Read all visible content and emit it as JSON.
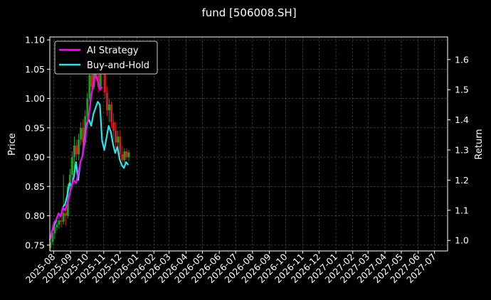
{
  "chart_data": {
    "type": "line",
    "title": "fund [506008.SH]",
    "ylabel_left": "Price",
    "ylabel_right": "Return",
    "x_ticks": [
      "2025-08",
      "2025-09",
      "2025-10",
      "2025-11",
      "2025-12",
      "2026-01",
      "2026-02",
      "2026-03",
      "2026-04",
      "2026-05",
      "2026-06",
      "2026-07",
      "2026-08",
      "2026-09",
      "2026-10",
      "2026-11",
      "2026-12",
      "2027-01",
      "2027-02",
      "2027-03",
      "2027-04",
      "2027-05",
      "2027-06",
      "2027-07"
    ],
    "xlim": [
      "2025-07-25",
      "2027-07-25"
    ],
    "left_ylim": [
      0.74,
      1.105
    ],
    "left_ticks": [
      0.75,
      0.8,
      0.85,
      0.9,
      0.95,
      1.0,
      1.05,
      1.1
    ],
    "right_ylim": [
      0.965,
      1.675
    ],
    "right_ticks": [
      1.0,
      1.1,
      1.2,
      1.3,
      1.4,
      1.5,
      1.6
    ],
    "grid": true,
    "legend_position": "top-left",
    "legend": [
      "AI Strategy",
      "Buy-and-Hold"
    ],
    "colors": {
      "ai_strategy": "#ff00ff",
      "buy_and_hold": "#22e6f2",
      "candle_up": "#1e9e1e",
      "candle_down": "#e01515",
      "background": "#000000",
      "grid": "#555555",
      "text": "#ffffff"
    },
    "candles": [
      {
        "d": "2025-07-26",
        "o": 0.745,
        "h": 0.76,
        "l": 0.74,
        "c": 0.755
      },
      {
        "d": "2025-07-30",
        "o": 0.755,
        "h": 0.775,
        "l": 0.75,
        "c": 0.77
      },
      {
        "d": "2025-08-03",
        "o": 0.77,
        "h": 0.79,
        "l": 0.76,
        "c": 0.78
      },
      {
        "d": "2025-08-07",
        "o": 0.78,
        "h": 0.795,
        "l": 0.775,
        "c": 0.785
      },
      {
        "d": "2025-08-11",
        "o": 0.785,
        "h": 0.8,
        "l": 0.778,
        "c": 0.792
      },
      {
        "d": "2025-08-15",
        "o": 0.792,
        "h": 0.805,
        "l": 0.78,
        "c": 0.79
      },
      {
        "d": "2025-08-19",
        "o": 0.79,
        "h": 0.87,
        "l": 0.785,
        "c": 0.805
      },
      {
        "d": "2025-08-23",
        "o": 0.805,
        "h": 0.82,
        "l": 0.783,
        "c": 0.8
      },
      {
        "d": "2025-08-27",
        "o": 0.8,
        "h": 0.855,
        "l": 0.795,
        "c": 0.85
      },
      {
        "d": "2025-08-31",
        "o": 0.85,
        "h": 0.88,
        "l": 0.84,
        "c": 0.87
      },
      {
        "d": "2025-09-04",
        "o": 0.87,
        "h": 0.91,
        "l": 0.86,
        "c": 0.9
      },
      {
        "d": "2025-09-08",
        "o": 0.9,
        "h": 0.935,
        "l": 0.88,
        "c": 0.92
      },
      {
        "d": "2025-09-12",
        "o": 0.92,
        "h": 0.93,
        "l": 0.895,
        "c": 0.905
      },
      {
        "d": "2025-09-16",
        "o": 0.905,
        "h": 0.94,
        "l": 0.895,
        "c": 0.93
      },
      {
        "d": "2025-09-20",
        "o": 0.93,
        "h": 0.96,
        "l": 0.92,
        "c": 0.95
      },
      {
        "d": "2025-09-24",
        "o": 0.95,
        "h": 0.965,
        "l": 0.915,
        "c": 0.925
      },
      {
        "d": "2025-09-28",
        "o": 0.925,
        "h": 0.98,
        "l": 0.92,
        "c": 0.97
      },
      {
        "d": "2025-10-02",
        "o": 0.97,
        "h": 1.01,
        "l": 0.965,
        "c": 1.0
      },
      {
        "d": "2025-10-06",
        "o": 1.0,
        "h": 1.05,
        "l": 0.995,
        "c": 1.04
      },
      {
        "d": "2025-10-10",
        "o": 1.04,
        "h": 1.06,
        "l": 1.01,
        "c": 1.02
      },
      {
        "d": "2025-10-14",
        "o": 1.02,
        "h": 1.075,
        "l": 1.015,
        "c": 1.06
      },
      {
        "d": "2025-10-18",
        "o": 1.06,
        "h": 1.07,
        "l": 1.03,
        "c": 1.04
      },
      {
        "d": "2025-10-22",
        "o": 1.04,
        "h": 1.055,
        "l": 1.01,
        "c": 1.02
      },
      {
        "d": "2025-10-26",
        "o": 1.02,
        "h": 1.08,
        "l": 1.015,
        "c": 1.07
      },
      {
        "d": "2025-10-30",
        "o": 1.07,
        "h": 1.09,
        "l": 1.04,
        "c": 1.05
      },
      {
        "d": "2025-11-03",
        "o": 1.05,
        "h": 1.06,
        "l": 1.0,
        "c": 1.01
      },
      {
        "d": "2025-11-07",
        "o": 1.01,
        "h": 1.02,
        "l": 0.97,
        "c": 0.98
      },
      {
        "d": "2025-11-11",
        "o": 0.98,
        "h": 1.0,
        "l": 0.96,
        "c": 0.99
      },
      {
        "d": "2025-11-15",
        "o": 0.99,
        "h": 0.995,
        "l": 0.95,
        "c": 0.96
      },
      {
        "d": "2025-11-19",
        "o": 0.96,
        "h": 0.975,
        "l": 0.93,
        "c": 0.945
      },
      {
        "d": "2025-11-23",
        "o": 0.945,
        "h": 0.96,
        "l": 0.915,
        "c": 0.925
      },
      {
        "d": "2025-11-27",
        "o": 0.925,
        "h": 0.945,
        "l": 0.905,
        "c": 0.935
      },
      {
        "d": "2025-12-01",
        "o": 0.935,
        "h": 0.945,
        "l": 0.895,
        "c": 0.905
      },
      {
        "d": "2025-12-05",
        "o": 0.905,
        "h": 0.92,
        "l": 0.885,
        "c": 0.895
      },
      {
        "d": "2025-12-09",
        "o": 0.895,
        "h": 0.915,
        "l": 0.89,
        "c": 0.91
      },
      {
        "d": "2025-12-13",
        "o": 0.91,
        "h": 0.915,
        "l": 0.895,
        "c": 0.9
      },
      {
        "d": "2025-12-17",
        "o": 0.9,
        "h": 0.912,
        "l": 0.893,
        "c": 0.908
      }
    ],
    "series": [
      {
        "name": "AI Strategy",
        "axis": "right",
        "x": [
          "2025-07-25",
          "2025-07-29",
          "2025-08-02",
          "2025-08-06",
          "2025-08-10",
          "2025-08-14",
          "2025-08-18",
          "2025-08-22",
          "2025-08-26",
          "2025-08-30",
          "2025-09-03",
          "2025-09-07",
          "2025-09-11",
          "2025-09-15",
          "2025-09-19",
          "2025-09-23",
          "2025-09-27",
          "2025-10-01",
          "2025-10-05",
          "2025-10-09",
          "2025-10-13",
          "2025-10-17",
          "2025-10-21",
          "2025-10-25",
          "2025-10-29"
        ],
        "values": [
          1.0,
          1.03,
          1.06,
          1.07,
          1.09,
          1.08,
          1.11,
          1.1,
          1.12,
          1.15,
          1.18,
          1.2,
          1.19,
          1.22,
          1.26,
          1.28,
          1.33,
          1.38,
          1.42,
          1.48,
          1.52,
          1.55,
          1.53,
          1.5,
          1.51
        ]
      },
      {
        "name": "Buy-and-Hold",
        "axis": "right",
        "x": [
          "2025-07-25",
          "2025-07-29",
          "2025-08-02",
          "2025-08-06",
          "2025-08-10",
          "2025-08-14",
          "2025-08-18",
          "2025-08-22",
          "2025-08-26",
          "2025-08-30",
          "2025-09-03",
          "2025-09-07",
          "2025-09-11",
          "2025-09-15",
          "2025-09-19",
          "2025-09-23",
          "2025-09-27",
          "2025-10-01",
          "2025-10-05",
          "2025-10-09",
          "2025-10-13",
          "2025-10-17",
          "2025-10-21",
          "2025-10-25",
          "2025-10-29",
          "2025-11-02",
          "2025-11-06",
          "2025-11-10",
          "2025-11-14",
          "2025-11-18",
          "2025-11-22",
          "2025-11-26",
          "2025-11-30",
          "2025-12-04",
          "2025-12-08",
          "2025-12-12",
          "2025-12-16"
        ],
        "values": [
          1.0,
          1.03,
          1.05,
          1.07,
          1.09,
          1.08,
          1.11,
          1.12,
          1.15,
          1.19,
          1.18,
          1.21,
          1.26,
          1.2,
          1.26,
          1.28,
          1.34,
          1.39,
          1.4,
          1.38,
          1.42,
          1.44,
          1.46,
          1.45,
          1.33,
          1.3,
          1.34,
          1.38,
          1.36,
          1.32,
          1.29,
          1.31,
          1.27,
          1.25,
          1.24,
          1.26,
          1.25
        ]
      }
    ]
  }
}
